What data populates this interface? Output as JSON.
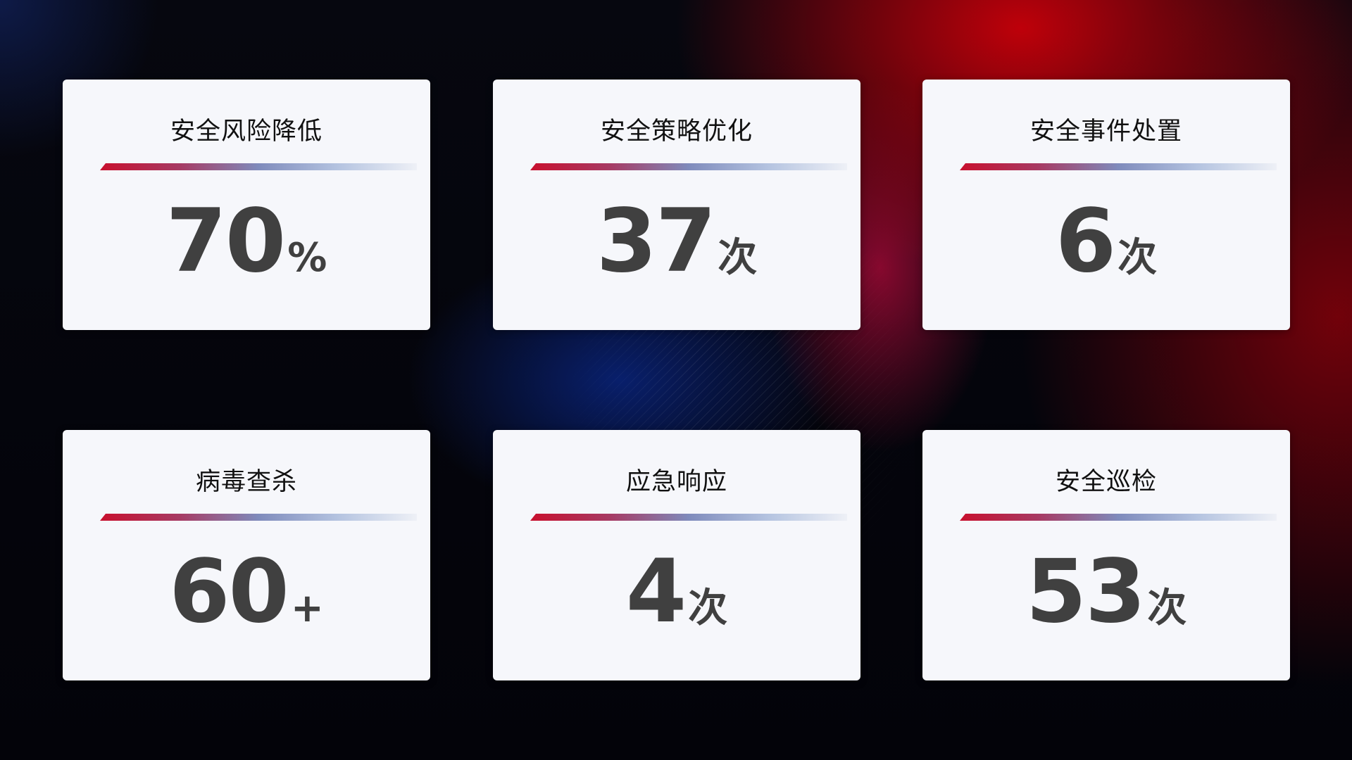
{
  "cards": [
    {
      "title": "安全风险降低",
      "value": "70",
      "unit": "%"
    },
    {
      "title": "安全策略优化",
      "value": "37",
      "unit": "次"
    },
    {
      "title": "安全事件处置",
      "value": "6",
      "unit": "次"
    },
    {
      "title": "病毒查杀",
      "value": "60",
      "unit": "+"
    },
    {
      "title": "应急响应",
      "value": "4",
      "unit": "次"
    },
    {
      "title": "安全巡检",
      "value": "53",
      "unit": "次"
    }
  ],
  "colors": {
    "accent_red": "#c8102e",
    "accent_blue": "#7f8bbc",
    "card_bg": "#f6f7fb",
    "value_text": "#404040"
  }
}
